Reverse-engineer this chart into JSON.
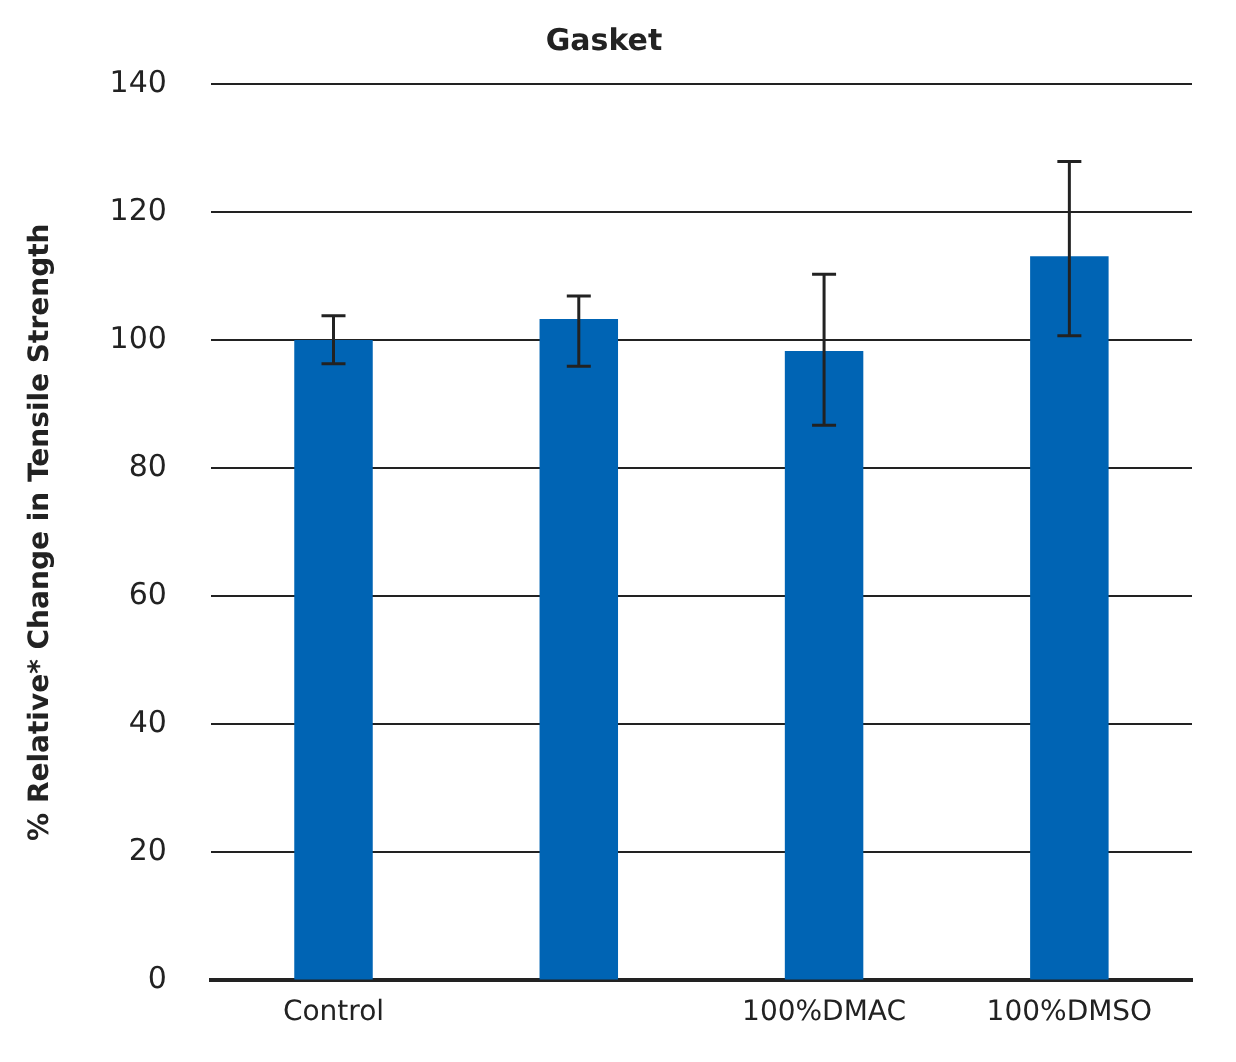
{
  "chart_data": {
    "type": "bar",
    "title": "Gasket",
    "ylabel": "% Relative* Change in Tensile Strength",
    "categories": [
      "Control",
      null,
      "100%DMAC",
      "100%DMSO"
    ],
    "values": [
      100,
      103.3,
      98.3,
      113.1
    ],
    "errors": [
      [
        96.3,
        103.8
      ],
      [
        95.9,
        106.9
      ],
      [
        86.7,
        110.3
      ],
      [
        100.7,
        127.9
      ]
    ],
    "color": "#0064b4",
    "ylim": [
      0,
      140
    ],
    "yticks": [
      0,
      20,
      40,
      60,
      80,
      100,
      120,
      140
    ],
    "grid": "y",
    "legend": false
  }
}
